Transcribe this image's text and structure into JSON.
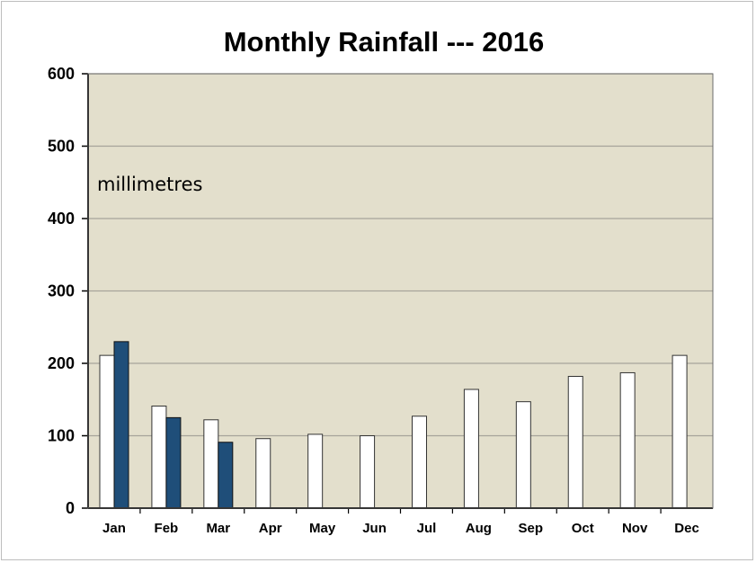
{
  "chart_data": {
    "type": "bar",
    "title": "Monthly Rainfall --- 2016",
    "annotation": "millimetres",
    "categories": [
      "Jan",
      "Feb",
      "Mar",
      "Apr",
      "May",
      "Jun",
      "Jul",
      "Aug",
      "Sep",
      "Oct",
      "Nov",
      "Dec"
    ],
    "series": [
      {
        "values": [
          211,
          141,
          122,
          96,
          102,
          100,
          127,
          164,
          147,
          182,
          187,
          211
        ],
        "color": "#ffffff"
      },
      {
        "values": [
          230,
          125,
          91,
          null,
          null,
          null,
          null,
          null,
          null,
          null,
          null,
          null
        ],
        "color": "#1f4e79"
      }
    ],
    "yticks": [
      0,
      100,
      200,
      300,
      400,
      500,
      600
    ],
    "ylim": [
      0,
      600
    ],
    "grid": true,
    "plot_background": "#e3dfcc"
  }
}
